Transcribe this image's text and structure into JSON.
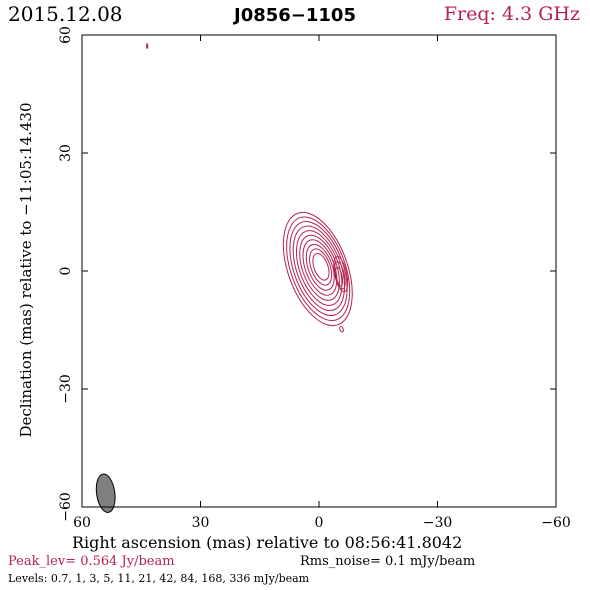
{
  "header": {
    "date": "2015.12.08",
    "source": "J0856−1105",
    "freq": "Freq: 4.3 GHz"
  },
  "footer": {
    "peak": "Peak_lev=  0.564 Jy/beam",
    "rms": "Rms_noise=  0.1 mJy/beam",
    "levels": "Levels: 0.7,   1,   3,   5,   11,   21,   42,   84, 168, 336 mJy/beam"
  },
  "colors": {
    "contour": "#b5234e",
    "beam": "#808080",
    "axis": "#000000"
  },
  "chart_data": {
    "type": "contour",
    "title": "J0856−1105",
    "xlabel": "Right ascension (mas) relative to 08:56:41.8042",
    "ylabel": "Declination (mas) relative to −11:05:14.430",
    "xlim": [
      60,
      -60
    ],
    "ylim": [
      -60,
      60
    ],
    "xticks": [
      60,
      30,
      0,
      -30,
      -60
    ],
    "yticks": [
      -60,
      -30,
      0,
      30,
      60
    ],
    "xtick_labels": [
      "60",
      "30",
      "0",
      "−30",
      "−60"
    ],
    "ytick_labels": [
      "−60",
      "−30",
      "0",
      "30",
      "60"
    ],
    "grid": false,
    "peak_jy_per_beam": 0.564,
    "rms_noise_mjy_per_beam": 0.1,
    "levels_mjy_per_beam": [
      0.7,
      1,
      3,
      5,
      11,
      21,
      42,
      84,
      168,
      336
    ],
    "core": {
      "x": 0.3,
      "y": 0.5,
      "pa_deg": 20,
      "extent_mas": [
        7.5,
        15
      ]
    },
    "components": [
      {
        "x": -5.5,
        "y": 0.2,
        "note": "jet extension"
      },
      {
        "x": -5.7,
        "y": -14.8,
        "note": "weak spot"
      },
      {
        "x": 43.5,
        "y": 57.2,
        "note": "weak spot"
      }
    ],
    "beam": {
      "x": 54,
      "y": -56.5,
      "major_mas": 4.9,
      "minor_mas": 2.3,
      "pa_deg": 8
    }
  }
}
